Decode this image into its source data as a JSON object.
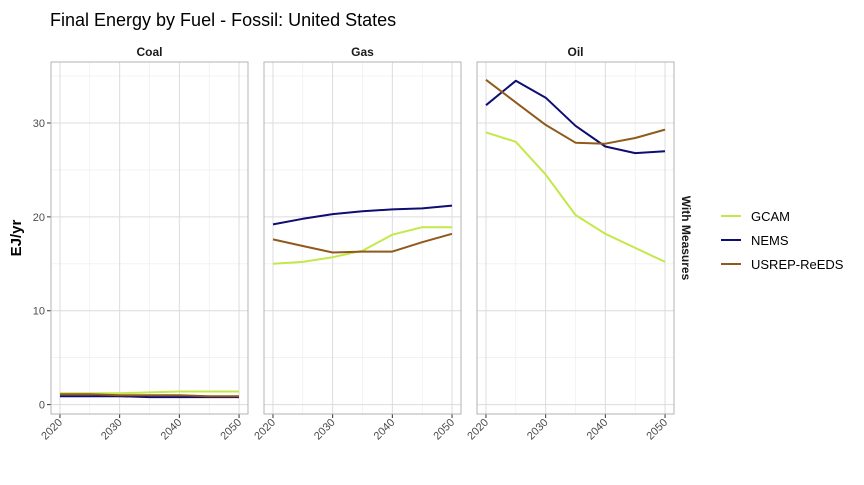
{
  "chart_data": {
    "type": "line",
    "title": "Final Energy by Fuel - Fossil: United States",
    "ylabel": "EJ/yr",
    "xlabel": "",
    "facet_row_label": "With Measures",
    "x": [
      2020,
      2025,
      2030,
      2035,
      2040,
      2045,
      2050
    ],
    "x_ticks": [
      "2020",
      "2030",
      "2040",
      "2050"
    ],
    "xlim": [
      2018.5,
      2051.5
    ],
    "ylim": [
      -1,
      36.5
    ],
    "y_ticks": [
      "0",
      "10",
      "20",
      "30"
    ],
    "grid": true,
    "legend_position": "right",
    "panels": [
      {
        "label": "Coal",
        "series": [
          {
            "name": "GCAM",
            "values": [
              1.2,
              1.2,
              1.2,
              1.3,
              1.4,
              1.4,
              1.4
            ]
          },
          {
            "name": "NEMS",
            "values": [
              0.9,
              0.9,
              0.9,
              0.8,
              0.8,
              0.8,
              0.8
            ]
          },
          {
            "name": "USREP-ReEDS",
            "values": [
              1.1,
              1.1,
              1.0,
              1.0,
              1.0,
              0.9,
              0.9
            ]
          }
        ]
      },
      {
        "label": "Gas",
        "series": [
          {
            "name": "GCAM",
            "values": [
              15.0,
              15.2,
              15.7,
              16.4,
              18.1,
              18.9,
              18.9
            ]
          },
          {
            "name": "NEMS",
            "values": [
              19.2,
              19.8,
              20.3,
              20.6,
              20.8,
              20.9,
              21.2
            ]
          },
          {
            "name": "USREP-ReEDS",
            "values": [
              17.6,
              16.9,
              16.2,
              16.3,
              16.3,
              17.3,
              18.2
            ]
          }
        ]
      },
      {
        "label": "Oil",
        "series": [
          {
            "name": "GCAM",
            "values": [
              29.0,
              28.0,
              24.5,
              20.2,
              18.2,
              16.7,
              15.2
            ]
          },
          {
            "name": "NEMS",
            "values": [
              31.9,
              34.5,
              32.7,
              29.7,
              27.5,
              26.8,
              27.0
            ]
          },
          {
            "name": "USREP-ReEDS",
            "values": [
              34.6,
              32.2,
              29.8,
              27.9,
              27.8,
              28.4,
              29.3
            ]
          }
        ]
      }
    ],
    "legend": [
      {
        "name": "GCAM",
        "color": "#c3e84a"
      },
      {
        "name": "NEMS",
        "color": "#0d0d73"
      },
      {
        "name": "USREP-ReEDS",
        "color": "#8f5a1b"
      }
    ]
  }
}
